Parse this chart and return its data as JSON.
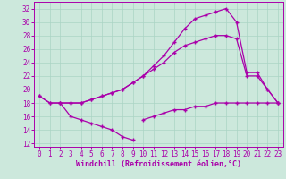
{
  "xlabel": "Windchill (Refroidissement éolien,°C)",
  "bg_color": "#cce8dc",
  "grid_color": "#aad4c4",
  "line_color": "#aa00aa",
  "xlim_min": -0.5,
  "xlim_max": 23.5,
  "ylim_min": 11.5,
  "ylim_max": 33,
  "yticks": [
    12,
    14,
    16,
    18,
    20,
    22,
    24,
    26,
    28,
    30,
    32
  ],
  "xticks": [
    0,
    1,
    2,
    3,
    4,
    5,
    6,
    7,
    8,
    9,
    10,
    11,
    12,
    13,
    14,
    15,
    16,
    17,
    18,
    19,
    20,
    21,
    22,
    23
  ],
  "series": [
    {
      "x": [
        0,
        1,
        2,
        3,
        4,
        5,
        6,
        7,
        8,
        9,
        10,
        11,
        12,
        13,
        14,
        15,
        16,
        17,
        18,
        19,
        20,
        21,
        22,
        23
      ],
      "y": [
        19,
        18,
        18,
        18,
        18,
        18.5,
        19,
        19.5,
        20,
        21,
        22,
        23.5,
        25,
        27,
        29,
        30.5,
        31,
        31.5,
        32,
        30,
        22.5,
        22.5,
        20,
        18
      ]
    },
    {
      "x": [
        0,
        1,
        2,
        3,
        4,
        5,
        6,
        7,
        8,
        9,
        10,
        11,
        12,
        13,
        14,
        15,
        16,
        17,
        18,
        19,
        20,
        21,
        22,
        23
      ],
      "y": [
        19,
        18,
        18,
        18,
        18,
        18.5,
        19,
        19.5,
        20,
        21,
        22,
        23,
        24,
        25.5,
        26.5,
        27,
        27.5,
        28,
        28,
        27.5,
        22,
        22,
        20,
        18
      ]
    },
    {
      "segments": [
        {
          "x": [
            2,
            3,
            4,
            5,
            6,
            7,
            8,
            9
          ],
          "y": [
            18,
            16,
            15.5,
            15,
            14.5,
            14,
            13,
            12.5
          ]
        },
        {
          "x": [
            10,
            11,
            12,
            13,
            14,
            15,
            16,
            17,
            18,
            19,
            20,
            21,
            22,
            23
          ],
          "y": [
            15.5,
            16,
            16.5,
            17,
            17,
            17.5,
            17.5,
            18,
            18,
            18,
            18,
            18,
            18,
            18
          ]
        }
      ]
    }
  ]
}
